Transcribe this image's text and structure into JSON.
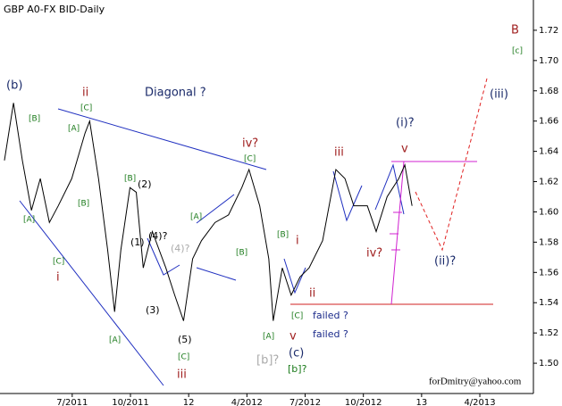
{
  "chart_data": {
    "type": "line",
    "title": "GBP A0-FX BID-Daily",
    "watermark": "forDmitry@yahoo.com",
    "x": [
      2011.209,
      2011.248,
      2011.286,
      2011.325,
      2011.363,
      2011.402,
      2011.44,
      2011.498,
      2011.555,
      2011.575,
      2011.613,
      2011.652,
      2011.682,
      2011.709,
      2011.748,
      2011.775,
      2011.805,
      2011.844,
      2011.902,
      2011.94,
      2011.978,
      2012.017,
      2012.055,
      2012.113,
      2012.171,
      2012.228,
      2012.259,
      2012.305,
      2012.344,
      2012.363,
      2012.402,
      2012.44,
      2012.478,
      2012.517,
      2012.575,
      2012.632,
      2012.671,
      2012.709,
      2012.767,
      2012.805,
      2012.852,
      2012.902,
      2012.928,
      2012.959
    ],
    "values": [
      1.634,
      1.672,
      1.634,
      1.601,
      1.622,
      1.593,
      1.604,
      1.622,
      1.652,
      1.66,
      1.622,
      1.575,
      1.534,
      1.575,
      1.616,
      1.613,
      1.563,
      1.587,
      1.563,
      1.545,
      1.528,
      1.569,
      1.581,
      1.593,
      1.598,
      1.616,
      1.628,
      1.604,
      1.569,
      1.528,
      1.563,
      1.545,
      1.557,
      1.563,
      1.581,
      1.628,
      1.622,
      1.604,
      1.604,
      1.587,
      1.61,
      1.622,
      1.631,
      1.604
    ],
    "color": "#000000",
    "xlim": [
      2011.19,
      2013.48
    ],
    "ylim": [
      1.48,
      1.74
    ],
    "xticks": [
      {
        "value": 2011.5,
        "label": "7/2011"
      },
      {
        "value": 2011.75,
        "label": "10/2011"
      },
      {
        "value": 2012.0,
        "label": "12"
      },
      {
        "value": 2012.25,
        "label": "4/2012"
      },
      {
        "value": 2012.5,
        "label": "7/2012"
      },
      {
        "value": 2012.75,
        "label": "10/2012"
      },
      {
        "value": 2013.0,
        "label": "13"
      },
      {
        "value": 2013.25,
        "label": "4/2013"
      }
    ],
    "yticks": [
      {
        "value": 1.5,
        "label": "1.50"
      },
      1.52,
      1.54,
      1.56,
      1.58,
      {
        "value": 1.6,
        "label": "1.60"
      },
      1.62,
      1.64,
      1.66,
      1.68,
      {
        "value": 1.7,
        "label": "1.70"
      },
      1.72
    ],
    "annotations": [
      "B",
      "[c]",
      "(b)",
      "ii",
      "Diagonal ?",
      "[C]",
      "[B]",
      "[A]",
      "[B]",
      "[A]",
      "[C]",
      "i",
      "[A]",
      "[B]",
      "(2)",
      "(1)",
      "(4)?",
      "(4)?",
      "(3)",
      "(5)",
      "[C]",
      "iii",
      "[A]",
      "[B]",
      "[C]",
      "iv?",
      "[B]",
      "i",
      "ii",
      "[C]",
      "failed ?",
      "failed ?",
      "[A]",
      "v",
      "(c)",
      "[b]?",
      "[b]?",
      "iii",
      "(i)?",
      "v",
      "iv?",
      "(ii)?",
      "(iii)"
    ]
  }
}
